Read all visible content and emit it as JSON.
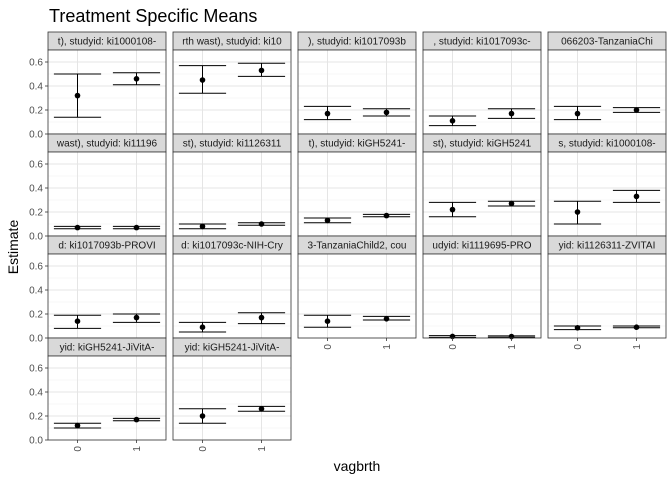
{
  "chart_data": {
    "type": "errorbar",
    "title": "Treatment Specific Means",
    "xlabel": "vagbrth",
    "ylabel": "Estimate",
    "categories": [
      "0",
      "1"
    ],
    "ylim": [
      0,
      0.7
    ],
    "yticks": [
      0.0,
      0.2,
      0.4,
      0.6
    ],
    "ytick_labels": [
      "0.0",
      "0.2",
      "0.4",
      "0.6"
    ],
    "grid": true,
    "panels": [
      {
        "strip": "t), studyid: ki1000108-",
        "points": [
          {
            "x": "0",
            "est": 0.32,
            "lo": 0.14,
            "hi": 0.5
          },
          {
            "x": "1",
            "est": 0.46,
            "lo": 0.41,
            "hi": 0.51
          }
        ]
      },
      {
        "strip": "rth wast), studyid: ki10",
        "points": [
          {
            "x": "0",
            "est": 0.45,
            "lo": 0.34,
            "hi": 0.57
          },
          {
            "x": "1",
            "est": 0.53,
            "lo": 0.48,
            "hi": 0.59
          }
        ]
      },
      {
        "strip": "), studyid: ki1017093b",
        "points": [
          {
            "x": "0",
            "est": 0.17,
            "lo": 0.12,
            "hi": 0.23
          },
          {
            "x": "1",
            "est": 0.18,
            "lo": 0.15,
            "hi": 0.21
          }
        ]
      },
      {
        "strip": ", studyid: ki1017093c-",
        "points": [
          {
            "x": "0",
            "est": 0.11,
            "lo": 0.07,
            "hi": 0.15
          },
          {
            "x": "1",
            "est": 0.17,
            "lo": 0.13,
            "hi": 0.21
          }
        ]
      },
      {
        "strip": "066203-TanzaniaChi",
        "points": [
          {
            "x": "0",
            "est": 0.17,
            "lo": 0.12,
            "hi": 0.23
          },
          {
            "x": "1",
            "est": 0.2,
            "lo": 0.18,
            "hi": 0.22
          }
        ]
      },
      {
        "strip": "wast), studyid: ki11196",
        "points": [
          {
            "x": "0",
            "est": 0.07,
            "lo": 0.06,
            "hi": 0.08
          },
          {
            "x": "1",
            "est": 0.07,
            "lo": 0.06,
            "hi": 0.08
          }
        ]
      },
      {
        "strip": "st), studyid: ki1126311",
        "points": [
          {
            "x": "0",
            "est": 0.08,
            "lo": 0.06,
            "hi": 0.1
          },
          {
            "x": "1",
            "est": 0.1,
            "lo": 0.09,
            "hi": 0.11
          }
        ]
      },
      {
        "strip": "t), studyid: kiGH5241-",
        "points": [
          {
            "x": "0",
            "est": 0.13,
            "lo": 0.11,
            "hi": 0.15
          },
          {
            "x": "1",
            "est": 0.17,
            "lo": 0.16,
            "hi": 0.18
          }
        ]
      },
      {
        "strip": "st), studyid: kiGH5241",
        "points": [
          {
            "x": "0",
            "est": 0.22,
            "lo": 0.16,
            "hi": 0.28
          },
          {
            "x": "1",
            "est": 0.27,
            "lo": 0.25,
            "hi": 0.29
          }
        ]
      },
      {
        "strip": "s, studyid: ki1000108-",
        "points": [
          {
            "x": "0",
            "est": 0.2,
            "lo": 0.1,
            "hi": 0.29
          },
          {
            "x": "1",
            "est": 0.33,
            "lo": 0.28,
            "hi": 0.38
          }
        ]
      },
      {
        "strip": "d: ki1017093b-PROVI",
        "points": [
          {
            "x": "0",
            "est": 0.14,
            "lo": 0.08,
            "hi": 0.19
          },
          {
            "x": "1",
            "est": 0.17,
            "lo": 0.13,
            "hi": 0.2
          }
        ]
      },
      {
        "strip": "d: ki1017093c-NIH-Cry",
        "points": [
          {
            "x": "0",
            "est": 0.09,
            "lo": 0.05,
            "hi": 0.13
          },
          {
            "x": "1",
            "est": 0.17,
            "lo": 0.12,
            "hi": 0.21
          }
        ]
      },
      {
        "strip": "3-TanzaniaChild2, cou",
        "points": [
          {
            "x": "0",
            "est": 0.14,
            "lo": 0.09,
            "hi": 0.19
          },
          {
            "x": "1",
            "est": 0.16,
            "lo": 0.15,
            "hi": 0.18
          }
        ]
      },
      {
        "strip": "udyid: ki1119695-PRO",
        "points": [
          {
            "x": "0",
            "est": 0.013,
            "lo": 0.005,
            "hi": 0.02
          },
          {
            "x": "1",
            "est": 0.012,
            "lo": 0.006,
            "hi": 0.018
          }
        ]
      },
      {
        "strip": "yid: ki1126311-ZVITAI",
        "points": [
          {
            "x": "0",
            "est": 0.085,
            "lo": 0.07,
            "hi": 0.1
          },
          {
            "x": "1",
            "est": 0.09,
            "lo": 0.085,
            "hi": 0.1
          }
        ]
      },
      {
        "strip": "yid: kiGH5241-JiVitA-",
        "points": [
          {
            "x": "0",
            "est": 0.12,
            "lo": 0.1,
            "hi": 0.14
          },
          {
            "x": "1",
            "est": 0.17,
            "lo": 0.16,
            "hi": 0.18
          }
        ]
      },
      {
        "strip": "yid: kiGH5241-JiVitA-",
        "points": [
          {
            "x": "0",
            "est": 0.2,
            "lo": 0.14,
            "hi": 0.26
          },
          {
            "x": "1",
            "est": 0.26,
            "lo": 0.24,
            "hi": 0.28
          }
        ]
      }
    ]
  }
}
